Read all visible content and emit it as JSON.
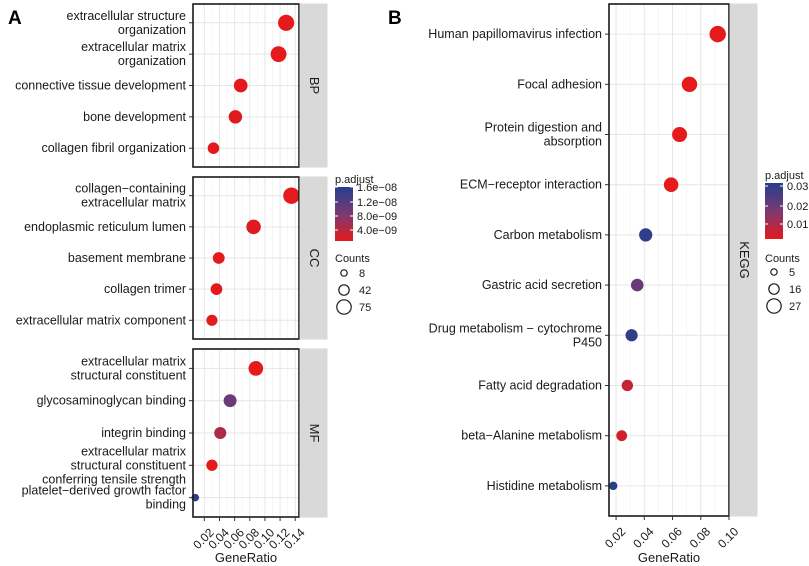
{
  "panel_labels": {
    "a": "A",
    "b": "B"
  },
  "chart_data": [
    {
      "type": "scatter",
      "panel": "A",
      "xlabel": "GeneRatio",
      "xlim": [
        0.005,
        0.145
      ],
      "xticks": [
        "0.02",
        "0.04",
        "0.06",
        "0.08",
        "0.10",
        "0.12",
        "0.14"
      ],
      "legend": {
        "color_title": "p.adjust",
        "color_ticks": [
          "1.6e−08",
          "1.2e−08",
          "8.0e−09",
          "4.0e−09"
        ],
        "size_title": "Counts",
        "size_values": [
          "8",
          "42",
          "75"
        ]
      },
      "facets": [
        {
          "strip": "BP",
          "series": [
            {
              "label": [
                "extracellular structure",
                "organization"
              ],
              "x": 0.128,
              "count": 75,
              "p_adjust": 1e-10
            },
            {
              "label": [
                "extracellular matrix",
                "organization"
              ],
              "x": 0.118,
              "count": 70,
              "p_adjust": 1e-10
            },
            {
              "label": [
                "connective tissue development"
              ],
              "x": 0.068,
              "count": 40,
              "p_adjust": 2e-10
            },
            {
              "label": [
                "bone development"
              ],
              "x": 0.061,
              "count": 37,
              "p_adjust": 5e-10
            },
            {
              "label": [
                "collagen fibril organization"
              ],
              "x": 0.032,
              "count": 20,
              "p_adjust": 2e-10
            }
          ]
        },
        {
          "strip": "CC",
          "series": [
            {
              "label": [
                "collagen−containing",
                "extracellular matrix"
              ],
              "x": 0.135,
              "count": 78,
              "p_adjust": 1e-10
            },
            {
              "label": [
                "endoplasmic reticulum lumen"
              ],
              "x": 0.085,
              "count": 50,
              "p_adjust": 5e-10
            },
            {
              "label": [
                "basement membrane"
              ],
              "x": 0.039,
              "count": 22,
              "p_adjust": 2e-10
            },
            {
              "label": [
                "collagen trimer"
              ],
              "x": 0.036,
              "count": 21,
              "p_adjust": 2e-10
            },
            {
              "label": [
                "extracellular matrix component"
              ],
              "x": 0.03,
              "count": 17,
              "p_adjust": 3e-10
            }
          ]
        },
        {
          "strip": "MF",
          "series": [
            {
              "label": [
                "extracellular matrix",
                "structural constituent"
              ],
              "x": 0.088,
              "count": 52,
              "p_adjust": 1e-10
            },
            {
              "label": [
                "glycosaminoglycan binding"
              ],
              "x": 0.054,
              "count": 32,
              "p_adjust": 1.05e-08
            },
            {
              "label": [
                "integrin binding"
              ],
              "x": 0.041,
              "count": 24,
              "p_adjust": 4.8e-09
            },
            {
              "label": [
                "extracellular matrix",
                "structural constituent",
                "conferring tensile strength"
              ],
              "x": 0.03,
              "count": 18,
              "p_adjust": 1e-10
            },
            {
              "label": [
                "platelet−derived growth factor",
                "binding"
              ],
              "x": 0.008,
              "count": 5,
              "p_adjust": 1.7e-08
            }
          ]
        }
      ]
    },
    {
      "type": "scatter",
      "panel": "B",
      "xlabel": "GeneRatio",
      "xlim": [
        0.015,
        0.1
      ],
      "xticks": [
        "0.02",
        "0.04",
        "0.06",
        "0.08",
        "0.10"
      ],
      "legend": {
        "color_title": "p.adjust",
        "color_ticks": [
          "0.03",
          "0.02",
          "0.01"
        ],
        "size_title": "Counts",
        "size_values": [
          "5",
          "16",
          "27"
        ]
      },
      "facets": [
        {
          "strip": "KEGG",
          "series": [
            {
              "label": [
                "Human papillomavirus infection"
              ],
              "x": 0.092,
              "count": 27,
              "p_adjust": 0.001
            },
            {
              "label": [
                "Focal adhesion"
              ],
              "x": 0.072,
              "count": 22,
              "p_adjust": 0.001
            },
            {
              "label": [
                "Protein digestion and",
                "absorption"
              ],
              "x": 0.065,
              "count": 20,
              "p_adjust": 0.001
            },
            {
              "label": [
                "ECM−receptor interaction"
              ],
              "x": 0.059,
              "count": 18,
              "p_adjust": 0.001
            },
            {
              "label": [
                "Carbon metabolism"
              ],
              "x": 0.041,
              "count": 13,
              "p_adjust": 0.033
            },
            {
              "label": [
                "Gastric acid secretion"
              ],
              "x": 0.035,
              "count": 11,
              "p_adjust": 0.022
            },
            {
              "label": [
                "Drug metabolism − cytochrome",
                "P450"
              ],
              "x": 0.031,
              "count": 10,
              "p_adjust": 0.032
            },
            {
              "label": [
                "Fatty acid degradation"
              ],
              "x": 0.028,
              "count": 8,
              "p_adjust": 0.006
            },
            {
              "label": [
                "beta−Alanine metabolism"
              ],
              "x": 0.024,
              "count": 7,
              "p_adjust": 0.004
            },
            {
              "label": [
                "Histidine metabolism"
              ],
              "x": 0.018,
              "count": 5,
              "p_adjust": 0.035
            }
          ]
        }
      ]
    }
  ]
}
